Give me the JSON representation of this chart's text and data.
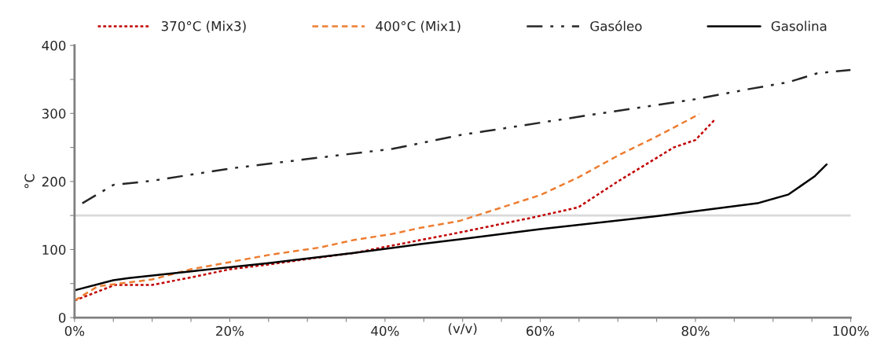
{
  "chart_data": {
    "type": "line",
    "ylabel": "°C",
    "xlabel": "(v/v)",
    "xlim": [
      0,
      100
    ],
    "ylim": [
      0,
      400
    ],
    "xticks": [
      {
        "value": 0,
        "label": "0%"
      },
      {
        "value": 5,
        "label": null
      },
      {
        "value": 10,
        "label": null
      },
      {
        "value": 15,
        "label": null
      },
      {
        "value": 20,
        "label": "20%"
      },
      {
        "value": 25,
        "label": null
      },
      {
        "value": 30,
        "label": null
      },
      {
        "value": 35,
        "label": null
      },
      {
        "value": 40,
        "label": "40%"
      },
      {
        "value": 45,
        "label": null
      },
      {
        "value": 50,
        "label": null
      },
      {
        "value": 55,
        "label": null
      },
      {
        "value": 60,
        "label": "60%"
      },
      {
        "value": 65,
        "label": null
      },
      {
        "value": 70,
        "label": null
      },
      {
        "value": 75,
        "label": null
      },
      {
        "value": 80,
        "label": "80%"
      },
      {
        "value": 85,
        "label": null
      },
      {
        "value": 90,
        "label": null
      },
      {
        "value": 95,
        "label": null
      },
      {
        "value": 100,
        "label": "100%"
      }
    ],
    "yticks": [
      0,
      {
        "value": 50,
        "label": null
      },
      100,
      {
        "value": 150,
        "label": null
      },
      200,
      {
        "value": 250,
        "label": null
      },
      300,
      {
        "value": 350,
        "label": null
      },
      400
    ],
    "grid": false,
    "legend": "top",
    "marker": "none",
    "ref_lines": [
      {
        "axis": "y",
        "value": 150,
        "label": null,
        "color": "#d9d9d9",
        "line_style": "solid"
      }
    ],
    "series": [
      {
        "name": "370°C (Mix3)",
        "color": "#c00000",
        "line_style": "dotted",
        "x": [
          0,
          5.2,
          10,
          15,
          20,
          25,
          30,
          36,
          41,
          44.6,
          49.6,
          59,
          64.9,
          70,
          77.2,
          80,
          82.5
        ],
        "values": [
          25,
          48,
          48,
          59,
          71,
          78,
          86,
          95,
          106,
          114,
          125,
          147,
          162,
          200,
          250,
          261,
          291
        ]
      },
      {
        "name": "400°C (Mix1)",
        "color": "#ed7d31",
        "line_style": "dashed",
        "x": [
          0,
          3,
          10,
          15,
          25,
          31.6,
          36,
          41,
          44.6,
          49.6,
          51.8,
          60,
          64.9,
          70,
          75.5,
          80.5
        ],
        "values": [
          25,
          46,
          56,
          71,
          92,
          103,
          114,
          123,
          132,
          142,
          150,
          180,
          206,
          238,
          269,
          299
        ]
      },
      {
        "name": "Gasóleo",
        "color": "#262626",
        "line_style": "dashdotdot",
        "x": [
          1,
          5,
          10,
          20,
          30,
          41,
          49.6,
          53,
          66.6,
          80,
          87,
          92,
          95.7,
          100
        ],
        "values": [
          168,
          195,
          201,
          219,
          233,
          248,
          268,
          274,
          298,
          321,
          336,
          346,
          359,
          364
        ]
      },
      {
        "name": "Gasolina",
        "color": "#000000",
        "line_style": "solid",
        "x": [
          0,
          5,
          7,
          15,
          25,
          36,
          44.6,
          49.6,
          60,
          75,
          88,
          92,
          95.4,
          96.9
        ],
        "values": [
          40,
          55,
          58,
          68,
          80,
          95,
          108,
          115,
          130,
          149,
          168,
          181,
          208,
          225
        ]
      }
    ]
  }
}
